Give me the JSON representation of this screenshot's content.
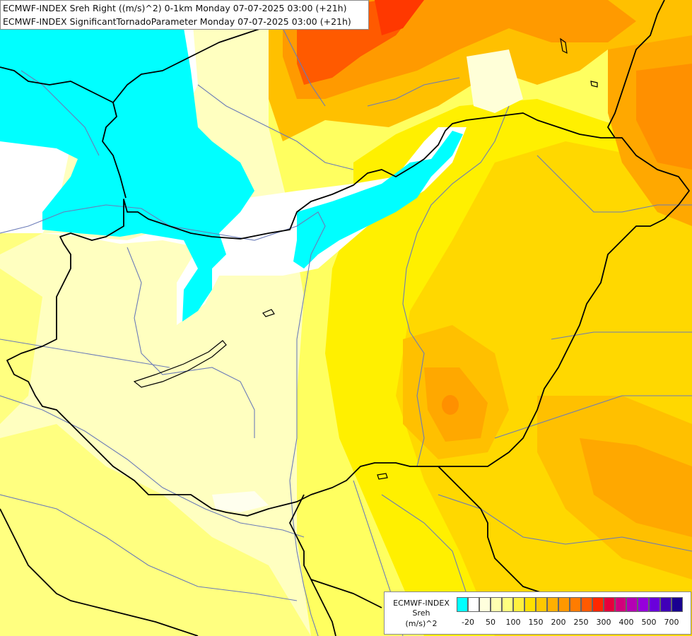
{
  "title": {
    "line1": "ECMWF-INDEX Sreh Right ((m/s)^2) 0-1km Monday 07-07-2025 03:00 (+21h)",
    "line2": "ECMWF-INDEX SignificantTornadoParameter Monday 07-07-2025 03:00 (+21h)"
  },
  "legend": {
    "source": "ECMWF-INDEX",
    "variable": "Sreh",
    "unit": "(m/s)^2",
    "colors": [
      "#00ffff",
      "#ffffff",
      "#ffffdd",
      "#ffffb0",
      "#ffff80",
      "#fff040",
      "#ffe000",
      "#ffc800",
      "#ffb000",
      "#ff9800",
      "#ff7c00",
      "#ff5a00",
      "#ff2800",
      "#e6003c",
      "#d2007c",
      "#b400b4",
      "#9600dc",
      "#6a00dc",
      "#4000b8",
      "#1a0090"
    ],
    "ticks": [
      "-20",
      "50",
      "100",
      "150",
      "200",
      "250",
      "300",
      "400",
      "500",
      "700"
    ]
  },
  "palette": {
    "cyan": "#00ffff",
    "white": "#ffffff",
    "pale": "#ffffc0",
    "yellow_light": "#ffff80",
    "yellow": "#fff000",
    "yellow_deep": "#ffd800",
    "orange_light": "#ffbd00",
    "orange": "#ff9a00",
    "orange_deep": "#ff7a00",
    "red_orange": "#ff5000",
    "border": "#000000",
    "river": "#6b7bb8"
  }
}
